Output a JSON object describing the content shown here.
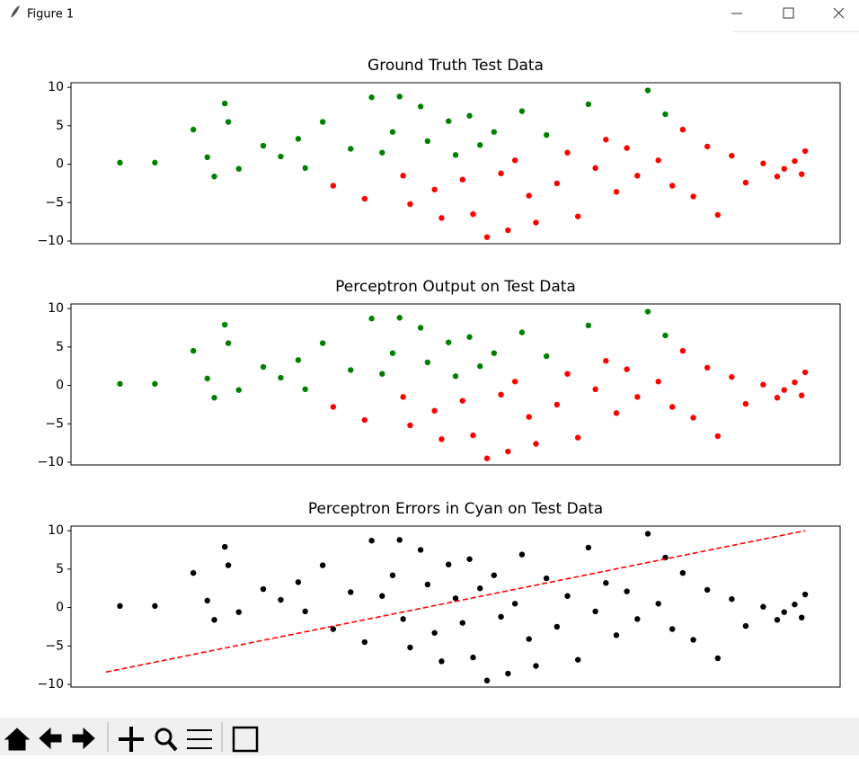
{
  "window": {
    "title": "Figure 1"
  },
  "chart_data": [
    {
      "type": "scatter",
      "title": "Ground Truth Test Data",
      "xlim": [
        -11,
        11
      ],
      "ylim": [
        -10.35,
        10.6
      ],
      "yticks": [
        {
          "value": -10,
          "label": "−10"
        },
        {
          "value": -5,
          "label": "−5"
        },
        0,
        5,
        10
      ],
      "series": [
        {
          "color": "#008000",
          "x": [
            -9.6,
            -8.6,
            -7.5,
            -6.6,
            -6.5,
            -7.1,
            -6.9,
            -6.2,
            -5.5,
            -5,
            -4.5,
            -4.3,
            -3.8,
            -3,
            -2.4,
            -2.1,
            -1.8,
            -1.6,
            -1,
            -0.8,
            -0.2,
            0,
            0.4,
            0.7,
            1.1,
            1.9,
            2.6,
            3.8,
            5.5,
            6
          ],
          "y": [
            0.2,
            0.2,
            4.5,
            7.9,
            5.5,
            0.9,
            -1.6,
            -0.6,
            2.4,
            1,
            3.3,
            -0.5,
            5.5,
            2,
            8.7,
            1.5,
            4.2,
            8.8,
            7.5,
            3,
            5.6,
            1.2,
            6.3,
            2.5,
            4.2,
            6.9,
            3.8,
            7.8,
            9.6,
            6.5
          ]
        },
        {
          "color": "#ff0000",
          "x": [
            -3.5,
            -2.6,
            -1.5,
            -1.3,
            -0.6,
            -0.4,
            0.2,
            0.5,
            0.9,
            1.3,
            1.5,
            1.7,
            2.1,
            2.3,
            2.9,
            3.2,
            3.5,
            4,
            4.3,
            4.6,
            4.9,
            5.2,
            5.8,
            6.2,
            6.5,
            6.8,
            7.2,
            7.5,
            7.9,
            8.3,
            8.8,
            9.2,
            9.4,
            9.7,
            9.9,
            10
          ],
          "y": [
            -2.8,
            -4.5,
            -1.5,
            -5.2,
            -3.3,
            -7,
            -2,
            -6.5,
            -9.5,
            -1.2,
            -8.6,
            0.5,
            -4.1,
            -7.6,
            -2.5,
            1.5,
            -6.8,
            -0.5,
            3.2,
            -3.6,
            2.1,
            -1.5,
            0.5,
            -2.8,
            4.5,
            -4.2,
            2.3,
            -6.6,
            1.1,
            -2.4,
            0.1,
            -1.6,
            -0.6,
            0.4,
            -1.3,
            1.7
          ]
        }
      ]
    },
    {
      "type": "scatter",
      "title": "Perceptron Output on Test Data",
      "xlim": [
        -11,
        11
      ],
      "ylim": [
        -10.35,
        10.6
      ],
      "yticks": [
        {
          "value": -10,
          "label": "−10"
        },
        {
          "value": -5,
          "label": "−5"
        },
        0,
        5,
        10
      ],
      "series": [
        {
          "color": "#008000",
          "x": [
            -9.6,
            -8.6,
            -7.5,
            -6.6,
            -6.5,
            -7.1,
            -6.9,
            -6.2,
            -5.5,
            -5,
            -4.5,
            -4.3,
            -3.8,
            -3,
            -2.4,
            -2.1,
            -1.8,
            -1.6,
            -1,
            -0.8,
            -0.2,
            0,
            0.4,
            0.7,
            1.1,
            1.9,
            2.6,
            3.8,
            5.5,
            6
          ],
          "y": [
            0.2,
            0.2,
            4.5,
            7.9,
            5.5,
            0.9,
            -1.6,
            -0.6,
            2.4,
            1,
            3.3,
            -0.5,
            5.5,
            2,
            8.7,
            1.5,
            4.2,
            8.8,
            7.5,
            3,
            5.6,
            1.2,
            6.3,
            2.5,
            4.2,
            6.9,
            3.8,
            7.8,
            9.6,
            6.5
          ]
        },
        {
          "color": "#ff0000",
          "x": [
            -3.5,
            -2.6,
            -1.5,
            -1.3,
            -0.6,
            -0.4,
            0.2,
            0.5,
            0.9,
            1.3,
            1.5,
            1.7,
            2.1,
            2.3,
            2.9,
            3.2,
            3.5,
            4,
            4.3,
            4.6,
            4.9,
            5.2,
            5.8,
            6.2,
            6.5,
            6.8,
            7.2,
            7.5,
            7.9,
            8.3,
            8.8,
            9.2,
            9.4,
            9.7,
            9.9,
            10
          ],
          "y": [
            -2.8,
            -4.5,
            -1.5,
            -5.2,
            -3.3,
            -7,
            -2,
            -6.5,
            -9.5,
            -1.2,
            -8.6,
            0.5,
            -4.1,
            -7.6,
            -2.5,
            1.5,
            -6.8,
            -0.5,
            3.2,
            -3.6,
            2.1,
            -1.5,
            0.5,
            -2.8,
            4.5,
            -4.2,
            2.3,
            -6.6,
            1.1,
            -2.4,
            0.1,
            -1.6,
            -0.6,
            0.4,
            -1.3,
            1.7
          ]
        }
      ]
    },
    {
      "type": "scatter",
      "title": "Perceptron Errors in Cyan on Test Data",
      "xlim": [
        -11,
        11
      ],
      "ylim": [
        -10.35,
        10.6
      ],
      "yticks": [
        {
          "value": -10,
          "label": "−10"
        },
        {
          "value": -5,
          "label": "−5"
        },
        0,
        5,
        10
      ],
      "series": [
        {
          "color": "#000000",
          "x": [
            -9.6,
            -8.6,
            -7.5,
            -6.6,
            -6.5,
            -7.1,
            -6.9,
            -6.2,
            -5.5,
            -5,
            -4.5,
            -4.3,
            -3.8,
            -3,
            -2.4,
            -2.1,
            -1.8,
            -1.6,
            -1,
            -0.8,
            -0.2,
            0,
            0.4,
            0.7,
            1.1,
            1.9,
            2.6,
            3.8,
            5.5,
            6,
            -3.5,
            -2.6,
            -1.5,
            -1.3,
            -0.6,
            -0.4,
            0.2,
            0.5,
            0.9,
            1.3,
            1.5,
            1.7,
            2.1,
            2.3,
            2.9,
            3.2,
            3.5,
            4,
            4.3,
            4.6,
            4.9,
            5.2,
            5.8,
            6.2,
            6.5,
            6.8,
            7.2,
            7.5,
            7.9,
            8.3,
            8.8,
            9.2,
            9.4,
            9.7,
            9.9,
            10
          ],
          "y": [
            0.2,
            0.2,
            4.5,
            7.9,
            5.5,
            0.9,
            -1.6,
            -0.6,
            2.4,
            1,
            3.3,
            -0.5,
            5.5,
            2,
            8.7,
            1.5,
            4.2,
            8.8,
            7.5,
            3,
            5.6,
            1.2,
            6.3,
            2.5,
            4.2,
            6.9,
            3.8,
            7.8,
            9.6,
            6.5,
            -2.8,
            -4.5,
            -1.5,
            -5.2,
            -3.3,
            -7,
            -2,
            -6.5,
            -9.5,
            -1.2,
            -8.6,
            0.5,
            -4.1,
            -7.6,
            -2.5,
            1.5,
            -6.8,
            -0.5,
            3.2,
            -3.6,
            2.1,
            -1.5,
            0.5,
            -2.8,
            4.5,
            -4.2,
            2.3,
            -6.6,
            1.1,
            -2.4,
            0.1,
            -1.6,
            -0.6,
            0.4,
            -1.3,
            1.7
          ]
        },
        {
          "color": "#ff0000",
          "kind": "line",
          "dash": "dashed",
          "x": [
            -10,
            10
          ],
          "y": [
            -8.4,
            10
          ]
        }
      ]
    }
  ]
}
